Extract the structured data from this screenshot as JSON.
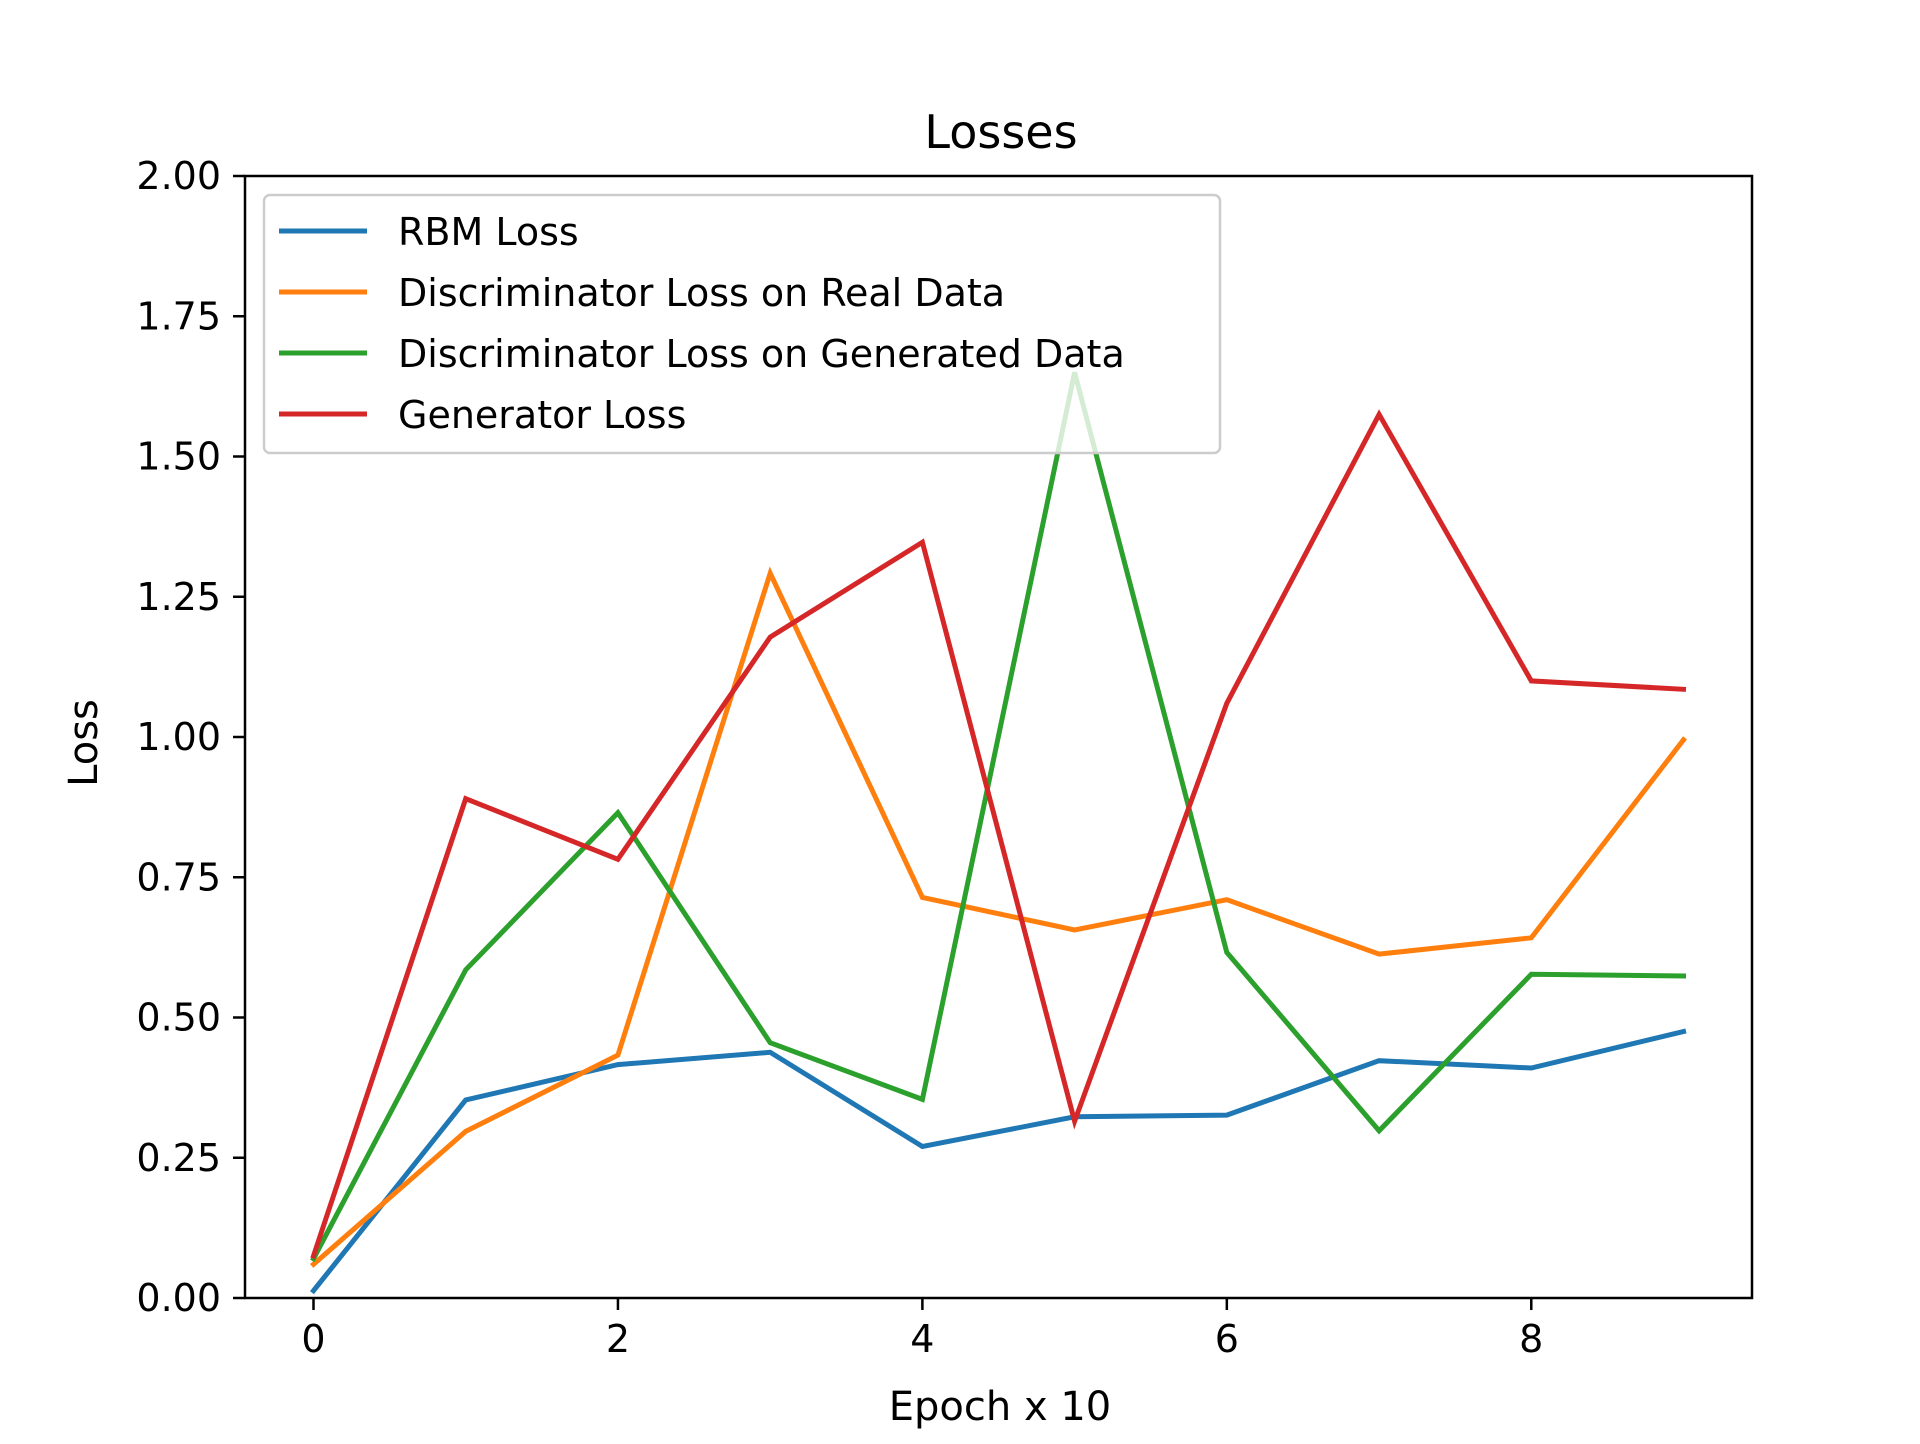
{
  "chart_data": {
    "type": "line",
    "title": "Losses",
    "xlabel": "Epoch x 10",
    "ylabel": "Loss",
    "x": [
      0,
      1,
      2,
      3,
      4,
      5,
      6,
      7,
      8,
      9
    ],
    "xlim": [
      -0.45,
      9.45
    ],
    "ylim": [
      0,
      2
    ],
    "xticks": [
      0,
      2,
      4,
      6,
      8
    ],
    "yticks": [
      0.0,
      0.25,
      0.5,
      0.75,
      1.0,
      1.25,
      1.5,
      1.75,
      2.0
    ],
    "xtick_labels": [
      "0",
      "2",
      "4",
      "6",
      "8"
    ],
    "ytick_labels": [
      "0.00",
      "0.25",
      "0.50",
      "0.75",
      "1.00",
      "1.25",
      "1.50",
      "1.75",
      "2.00"
    ],
    "grid": false,
    "legend_position": "top-left",
    "series": [
      {
        "name": "RBM Loss",
        "color": "#1f77b4",
        "values": [
          0.013,
          0.353,
          0.416,
          0.438,
          0.27,
          0.323,
          0.326,
          0.423,
          0.41,
          0.475
        ]
      },
      {
        "name": "Discriminator Loss on Real Data",
        "color": "#ff7f0e",
        "values": [
          0.06,
          0.297,
          0.433,
          1.292,
          0.714,
          0.656,
          0.71,
          0.613,
          0.642,
          0.995
        ]
      },
      {
        "name": "Discriminator Loss on Generated Data",
        "color": "#2ca02c",
        "values": [
          0.07,
          0.585,
          0.865,
          0.455,
          0.354,
          1.65,
          0.616,
          0.298,
          0.577,
          0.574
        ]
      },
      {
        "name": "Generator Loss",
        "color": "#d62728",
        "values": [
          0.075,
          0.89,
          0.782,
          1.178,
          1.347,
          0.315,
          1.06,
          1.575,
          1.1,
          1.085
        ]
      }
    ]
  }
}
